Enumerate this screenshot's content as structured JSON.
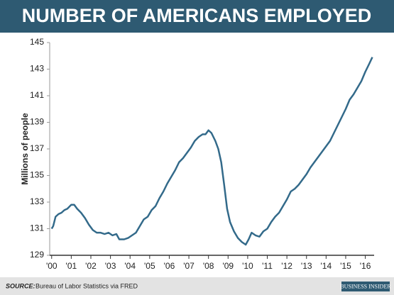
{
  "chart_data": {
    "type": "line",
    "title": "NUMBER OF AMERICANS EMPLOYED",
    "y_label": "Millions of people",
    "source_label": "SOURCE:",
    "source": "Bureau of Labor Statistics via FRED",
    "logo": "BUSINESS INSIDER",
    "x": [
      2000.0,
      2000.08,
      2000.2,
      2000.35,
      2000.5,
      2000.65,
      2000.8,
      2001.0,
      2001.15,
      2001.3,
      2001.5,
      2001.7,
      2001.9,
      2002.1,
      2002.3,
      2002.5,
      2002.7,
      2002.9,
      2003.1,
      2003.3,
      2003.45,
      2003.7,
      2003.9,
      2004.1,
      2004.3,
      2004.5,
      2004.7,
      2004.9,
      2005.1,
      2005.3,
      2005.5,
      2005.7,
      2005.9,
      2006.1,
      2006.3,
      2006.5,
      2006.7,
      2006.9,
      2007.1,
      2007.3,
      2007.5,
      2007.7,
      2007.85,
      2008.0,
      2008.15,
      2008.35,
      2008.5,
      2008.65,
      2008.8,
      2008.95,
      2009.1,
      2009.3,
      2009.5,
      2009.7,
      2009.9,
      2010.05,
      2010.2,
      2010.4,
      2010.6,
      2010.8,
      2011.0,
      2011.2,
      2011.4,
      2011.6,
      2011.8,
      2012.0,
      2012.2,
      2012.4,
      2012.6,
      2012.8,
      2013.0,
      2013.2,
      2013.4,
      2013.6,
      2013.8,
      2014.0,
      2014.2,
      2014.4,
      2014.6,
      2014.8,
      2015.0,
      2015.2,
      2015.4,
      2015.6,
      2015.8,
      2016.0,
      2016.2,
      2016.36
    ],
    "series": [
      {
        "name": "Employed",
        "color": "#336a8a",
        "values": [
          131.0,
          131.2,
          131.9,
          132.1,
          132.2,
          132.4,
          132.5,
          132.8,
          132.8,
          132.5,
          132.2,
          131.8,
          131.3,
          130.9,
          130.7,
          130.7,
          130.6,
          130.7,
          130.5,
          130.6,
          130.2,
          130.2,
          130.3,
          130.5,
          130.7,
          131.2,
          131.7,
          131.9,
          132.4,
          132.7,
          133.3,
          133.8,
          134.4,
          134.9,
          135.4,
          136.0,
          136.3,
          136.7,
          137.1,
          137.6,
          137.9,
          138.1,
          138.1,
          138.4,
          138.2,
          137.6,
          137.0,
          136.0,
          134.3,
          132.5,
          131.5,
          130.8,
          130.3,
          130.0,
          129.8,
          130.2,
          130.7,
          130.5,
          130.4,
          130.8,
          131.0,
          131.5,
          131.9,
          132.2,
          132.7,
          133.2,
          133.8,
          134.0,
          134.3,
          134.7,
          135.1,
          135.6,
          136.0,
          136.4,
          136.8,
          137.2,
          137.6,
          138.2,
          138.8,
          139.4,
          140.0,
          140.7,
          141.1,
          141.6,
          142.1,
          142.8,
          143.4,
          143.9
        ]
      }
    ],
    "xlim": [
      1999.9,
      2016.45
    ],
    "xticks": [
      {
        "value": 2000,
        "label": "'00"
      },
      {
        "value": 2001,
        "label": "'01"
      },
      {
        "value": 2002,
        "label": "'02"
      },
      {
        "value": 2003,
        "label": "'03"
      },
      {
        "value": 2004,
        "label": "'04"
      },
      {
        "value": 2005,
        "label": "'05"
      },
      {
        "value": 2006,
        "label": "'06"
      },
      {
        "value": 2007,
        "label": "'07"
      },
      {
        "value": 2008,
        "label": "'08"
      },
      {
        "value": 2009,
        "label": "'09"
      },
      {
        "value": 2010,
        "label": "'10"
      },
      {
        "value": 2011,
        "label": "'11"
      },
      {
        "value": 2012,
        "label": "'12"
      },
      {
        "value": 2013,
        "label": "'13"
      },
      {
        "value": 2014,
        "label": "'14"
      },
      {
        "value": 2015,
        "label": "'15"
      },
      {
        "value": 2016,
        "label": "'16"
      }
    ],
    "ylim": [
      129,
      145
    ],
    "yticks": [
      129,
      131,
      133,
      135,
      137,
      139,
      141,
      143,
      145
    ],
    "grid": false
  }
}
